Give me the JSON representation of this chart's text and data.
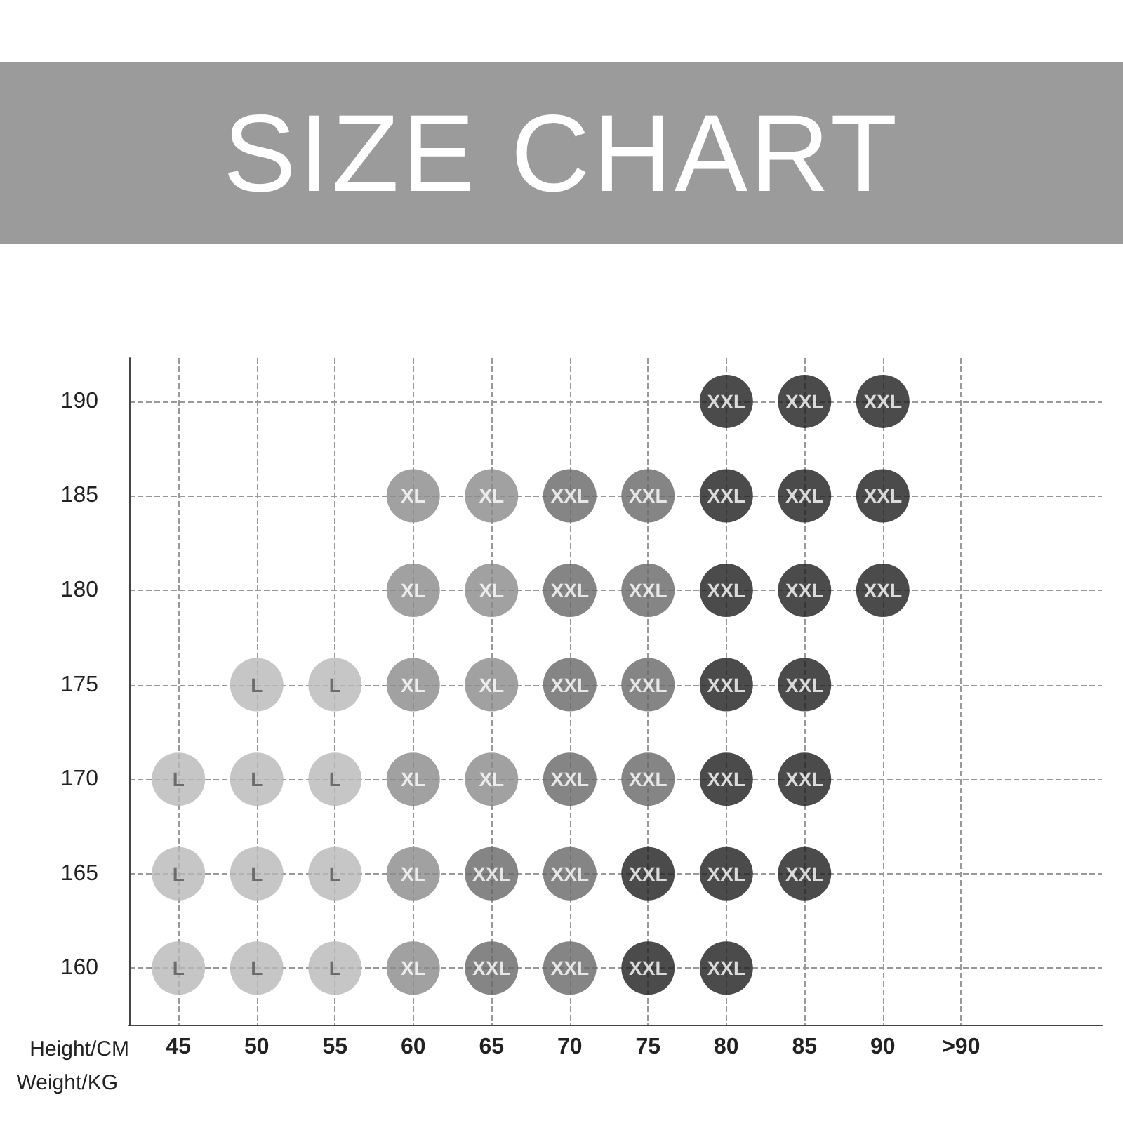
{
  "chart_data": {
    "type": "scatter",
    "title": "SIZE CHART",
    "xlabel": "Weight/KG",
    "ylabel": "Height/CM",
    "categories": [
      "45",
      "50",
      "55",
      "60",
      "65",
      "70",
      "75",
      "80",
      "85",
      "90",
      ">90"
    ],
    "ylim": [
      157,
      192.3
    ],
    "yticks": [
      160,
      165,
      170,
      175,
      180,
      185,
      190
    ],
    "grid": true,
    "marker": "circle",
    "series": [
      {
        "color": "#b8b8b8",
        "x": [
          "45",
          "45",
          "45",
          "50",
          "50",
          "50",
          "50",
          "55",
          "55",
          "55",
          "55"
        ],
        "values": [
          160,
          165,
          170,
          160,
          165,
          170,
          175,
          160,
          165,
          170,
          175
        ],
        "value_labels": [
          "L",
          "L",
          "L",
          "L",
          "L",
          "L",
          "L",
          "L",
          "L",
          "L",
          "L"
        ]
      },
      {
        "color": "#8a8a8a",
        "x": [
          "60",
          "60",
          "60",
          "60",
          "60",
          "60",
          "65",
          "65",
          "65",
          "65"
        ],
        "values": [
          160,
          165,
          170,
          175,
          180,
          185,
          170,
          175,
          180,
          185
        ],
        "value_labels": [
          "XL",
          "XL",
          "XL",
          "XL",
          "XL",
          "XL",
          "XL",
          "XL",
          "XL",
          "XL"
        ]
      },
      {
        "color": "#666666",
        "x": [
          "65",
          "65",
          "70",
          "70",
          "70",
          "70",
          "70",
          "70",
          "75",
          "75",
          "75",
          "75"
        ],
        "values": [
          160,
          165,
          160,
          165,
          170,
          175,
          180,
          185,
          170,
          175,
          180,
          185
        ],
        "value_labels": [
          "XXL",
          "XXL",
          "XXL",
          "XXL",
          "XXL",
          "XXL",
          "XXL",
          "XXL",
          "XXL",
          "XXL",
          "XXL",
          "XXL"
        ]
      },
      {
        "color": "#1e1e1e",
        "x": [
          "75",
          "75",
          "80",
          "80",
          "80",
          "80",
          "80",
          "80",
          "80",
          "85",
          "85",
          "85",
          "85",
          "85",
          "85",
          "90",
          "90",
          "90"
        ],
        "values": [
          160,
          165,
          160,
          165,
          170,
          175,
          180,
          185,
          190,
          165,
          170,
          175,
          180,
          185,
          190,
          180,
          185,
          190
        ],
        "value_labels": [
          "XXL",
          "XXL",
          "XXL",
          "XXL",
          "XXL",
          "XXL",
          "XXL",
          "XXL",
          "XXL",
          "XXL",
          "XXL",
          "XXL",
          "XXL",
          "XXL",
          "XXL",
          "XXL",
          "XXL",
          "XXL"
        ]
      }
    ]
  }
}
